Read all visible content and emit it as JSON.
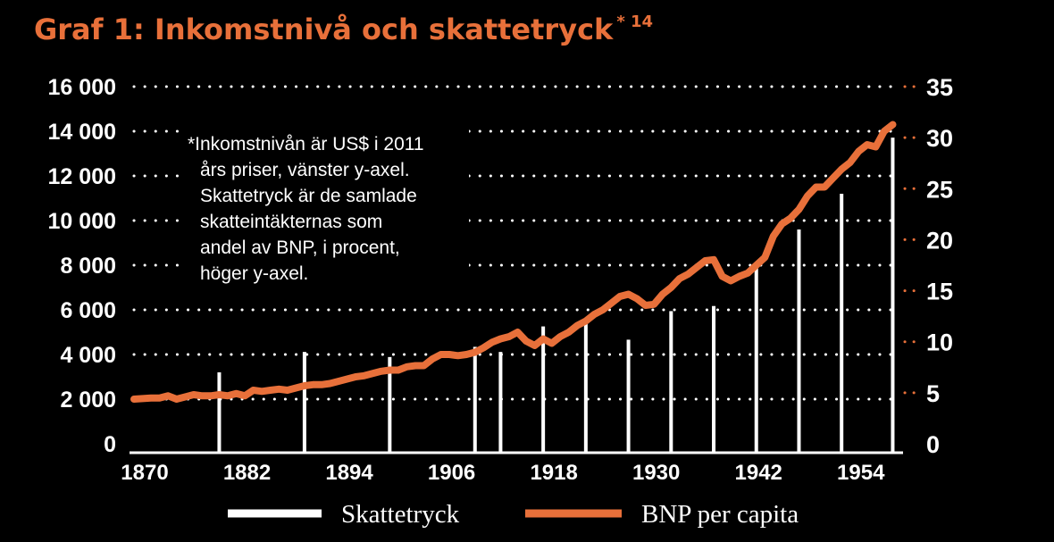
{
  "chart_data": {
    "type": "bar+line",
    "title": "Graf 1: Inkomstnivå och skattetryck",
    "title_superscript": "* 14",
    "note_lines": [
      "*Inkomstnivån är US$ i 2011",
      "års priser, vänster y-axel.",
      "Skattetryck är de samlade",
      "skatteintäkternas som",
      "andel av BNP, i procent,",
      "höger y-axel."
    ],
    "x_ticks": [
      "1870",
      "1882",
      "1894",
      "1906",
      "1918",
      "1930",
      "1942",
      "1954"
    ],
    "xlim": [
      1870,
      1960
    ],
    "y_left": {
      "ylim": [
        0,
        16000
      ],
      "ticks": [
        0,
        2000,
        4000,
        6000,
        8000,
        10000,
        12000,
        14000,
        16000
      ],
      "tick_labels": [
        "0",
        "2 000",
        "4 000",
        "6 000",
        "8 000",
        "10 000",
        "12 000",
        "14 000",
        "16 000"
      ]
    },
    "y_right": {
      "ylim": [
        0,
        35
      ],
      "ticks": [
        0,
        5,
        10,
        15,
        20,
        25,
        30,
        35
      ],
      "tick_labels": [
        "0",
        "5",
        "10",
        "15",
        "20",
        "25",
        "30",
        "35"
      ]
    },
    "grid": "dotted horizontal",
    "legend_position": "bottom",
    "series": [
      {
        "name": "Skattetryck",
        "type": "bar",
        "axis": "right",
        "color": "#ffffff",
        "x": [
          1880,
          1890,
          1900,
          1910,
          1913,
          1918,
          1923,
          1928,
          1933,
          1938,
          1943,
          1948,
          1953,
          1959
        ],
        "values": [
          7,
          9,
          8.5,
          9.5,
          9,
          11.5,
          12,
          10.2,
          13,
          13.5,
          17.5,
          21,
          24.5,
          30
        ]
      },
      {
        "name": "BNP per capita",
        "type": "line",
        "axis": "left",
        "color": "#e8703a",
        "x": [
          1870,
          1872,
          1873,
          1874,
          1875,
          1876,
          1877,
          1878,
          1879,
          1880,
          1881,
          1882,
          1883,
          1884,
          1885,
          1886,
          1887,
          1888,
          1889,
          1890,
          1891,
          1892,
          1893,
          1894,
          1895,
          1896,
          1897,
          1898,
          1899,
          1900,
          1901,
          1902,
          1903,
          1904,
          1905,
          1906,
          1907,
          1908,
          1909,
          1910,
          1911,
          1912,
          1913,
          1914,
          1915,
          1916,
          1917,
          1918,
          1919,
          1920,
          1921,
          1922,
          1923,
          1924,
          1925,
          1926,
          1927,
          1928,
          1929,
          1930,
          1931,
          1932,
          1933,
          1934,
          1935,
          1936,
          1937,
          1938,
          1939,
          1940,
          1941,
          1942,
          1943,
          1944,
          1945,
          1946,
          1947,
          1948,
          1949,
          1950,
          1951,
          1952,
          1953,
          1954,
          1955,
          1956,
          1957,
          1958,
          1959
        ],
        "values": [
          2000,
          2050,
          2050,
          2150,
          2000,
          2100,
          2200,
          2150,
          2150,
          2200,
          2150,
          2250,
          2150,
          2400,
          2350,
          2400,
          2450,
          2400,
          2500,
          2600,
          2650,
          2650,
          2700,
          2800,
          2900,
          3000,
          3050,
          3150,
          3250,
          3300,
          3300,
          3450,
          3500,
          3500,
          3800,
          4000,
          4000,
          3950,
          4000,
          4100,
          4300,
          4550,
          4700,
          4800,
          5000,
          4600,
          4400,
          4700,
          4500,
          4800,
          5000,
          5300,
          5500,
          5800,
          6000,
          6300,
          6600,
          6700,
          6500,
          6200,
          6250,
          6700,
          7000,
          7400,
          7600,
          7900,
          8200,
          8250,
          7500,
          7300,
          7500,
          7650,
          8000,
          8350,
          9300,
          9850,
          10100,
          10500,
          11100,
          11500,
          11500,
          11900,
          12300,
          12600,
          13100,
          13400,
          13300,
          14000,
          14300
        ]
      }
    ]
  }
}
